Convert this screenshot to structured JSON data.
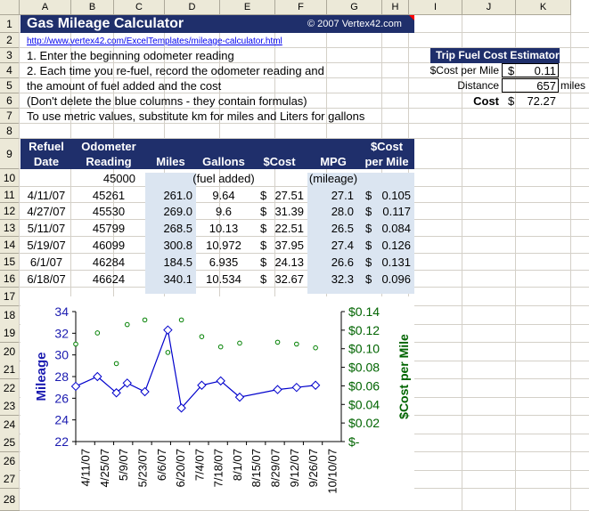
{
  "columns": [
    "A",
    "B",
    "C",
    "D",
    "E",
    "F",
    "G",
    "H",
    "I",
    "J",
    "K"
  ],
  "rows": [
    "1",
    "2",
    "3",
    "4",
    "5",
    "6",
    "7",
    "8",
    "9",
    "10",
    "11",
    "12",
    "13",
    "14",
    "15",
    "16",
    "17",
    "18",
    "19",
    "20",
    "21",
    "22",
    "23",
    "24",
    "25",
    "26",
    "27",
    "28"
  ],
  "title": "Gas Mileage Calculator",
  "copyright": "© 2007 Vertex42.com",
  "link": "http://www.vertex42.com/ExcelTemplates/mileage-calculator.html",
  "instructions": [
    "1. Enter the beginning odometer reading",
    "2. Each time you re-fuel, record the odometer reading and",
    "the amount of fuel added and the cost",
    "(Don't delete the blue columns - they contain formulas)",
    "To use metric values, substitute km for miles and Liters for gallons"
  ],
  "table": {
    "headers": [
      {
        "line1": "Refuel",
        "line2": "Date"
      },
      {
        "line1": "Odometer",
        "line2": "Reading"
      },
      {
        "line1": "",
        "line2": "Miles"
      },
      {
        "line1": "",
        "line2": "Gallons"
      },
      {
        "line1": "",
        "line2": "$Cost"
      },
      {
        "line1": "",
        "line2": "MPG"
      },
      {
        "line1": "$Cost",
        "line2": "per Mile"
      }
    ],
    "start_odometer": "45000",
    "fuel_added_note": "(fuel added)",
    "mileage_note": "(mileage)",
    "rows": [
      {
        "date": "4/11/07",
        "odo": "45261",
        "miles": "261.0",
        "gallons": "9.64",
        "cost": "27.51",
        "mpg": "27.1",
        "cpm": "0.105"
      },
      {
        "date": "4/27/07",
        "odo": "45530",
        "miles": "269.0",
        "gallons": "9.6",
        "cost": "31.39",
        "mpg": "28.0",
        "cpm": "0.117"
      },
      {
        "date": "5/11/07",
        "odo": "45799",
        "miles": "268.5",
        "gallons": "10.13",
        "cost": "22.51",
        "mpg": "26.5",
        "cpm": "0.084"
      },
      {
        "date": "5/19/07",
        "odo": "46099",
        "miles": "300.8",
        "gallons": "10.972",
        "cost": "37.95",
        "mpg": "27.4",
        "cpm": "0.126"
      },
      {
        "date": "6/1/07",
        "odo": "46284",
        "miles": "184.5",
        "gallons": "6.935",
        "cost": "24.13",
        "mpg": "26.6",
        "cpm": "0.131"
      },
      {
        "date": "6/18/07",
        "odo": "46624",
        "miles": "340.1",
        "gallons": "10.534",
        "cost": "32.67",
        "mpg": "32.3",
        "cpm": "0.096"
      }
    ],
    "currency": "$"
  },
  "trip": {
    "title": "Trip Fuel Cost Estimator",
    "cost_label": "$Cost per Mile",
    "cost_currency": "$",
    "cost_value": "0.11",
    "distance_label": "Distance",
    "distance_value": "657",
    "distance_unit": "miles",
    "total_label": "Cost",
    "total_currency": "$",
    "total_value": "72.27"
  },
  "colors": {
    "navy": "#1f2f6b",
    "line": "#0000cc",
    "marker_green": "#008000",
    "blue_col": "#dbe5f1"
  },
  "chart_data": {
    "type": "line",
    "xlabel": "",
    "ylabel": "Mileage",
    "y2label": "$Cost per Mile",
    "ylim": [
      22,
      34
    ],
    "y2lim": [
      0,
      0.14
    ],
    "yticks": [
      "22",
      "24",
      "26",
      "28",
      "30",
      "32",
      "34"
    ],
    "y2ticks": [
      "$-",
      "$0.02",
      "$0.04",
      "$0.06",
      "$0.08",
      "$0.10",
      "$0.12",
      "$0.14"
    ],
    "x_tick_labels": [
      "4/11/07",
      "4/25/07",
      "5/9/07",
      "5/23/07",
      "6/6/07",
      "6/20/07",
      "7/4/07",
      "7/18/07",
      "8/1/07",
      "8/15/07",
      "8/29/07",
      "9/12/07",
      "9/26/07",
      "10/10/07"
    ],
    "x_range_days": [
      0,
      196
    ],
    "series": [
      {
        "axis": "left",
        "marker": "diamond",
        "x_dates": [
          "4/11/07",
          "4/27/07",
          "5/11/07",
          "5/19/07",
          "6/1/07",
          "6/18/07",
          "6/28/07",
          "7/13/07",
          "7/27/07",
          "8/10/07",
          "9/7/07",
          "9/21/07",
          "10/5/07"
        ],
        "values": [
          27.1,
          28.0,
          26.5,
          27.4,
          26.6,
          32.3,
          25.1,
          27.2,
          27.6,
          26.1,
          26.8,
          27.0,
          27.2
        ]
      },
      {
        "axis": "right",
        "marker": "dot",
        "x_dates": [
          "4/11/07",
          "4/27/07",
          "5/11/07",
          "5/19/07",
          "6/1/07",
          "6/18/07",
          "6/28/07",
          "7/13/07",
          "7/27/07",
          "8/10/07",
          "9/7/07",
          "9/21/07",
          "10/5/07"
        ],
        "values": [
          0.105,
          0.117,
          0.084,
          0.126,
          0.131,
          0.096,
          0.131,
          0.113,
          0.102,
          0.106,
          0.107,
          0.105,
          0.101
        ]
      }
    ]
  }
}
